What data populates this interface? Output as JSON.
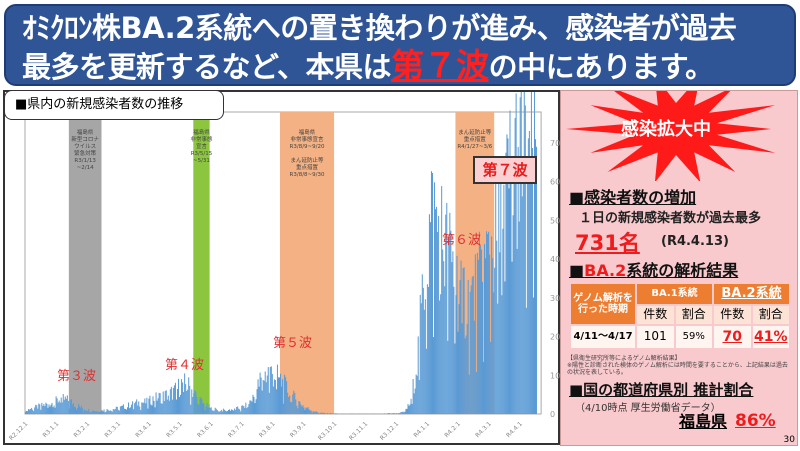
{
  "banner": {
    "line1": "ｵﾐｸﾛﾝ株BA.2系統への置き換わりが進み、感染者が過去",
    "line2_a": "最多を更新するなど、本県は",
    "line2_hl": "第７波",
    "line2_b": "の中にあります。"
  },
  "chart_title": "■県内の新規感染者数の推移",
  "wave_labels": [
    "第３波",
    "第４波",
    "第５波",
    "第６波"
  ],
  "seventh_wave_callout": "第７波",
  "shade_labels": [
    {
      "text": [
        "福島県",
        "新型コロナ",
        "ウイルス",
        "緊急対策",
        "R3/1/13",
        "~2/14"
      ],
      "color": "#a6a6a6"
    },
    {
      "text": [
        "福島県",
        "非常事態",
        "宣言",
        "R3/5/15",
        "~5/31"
      ],
      "color": "#8cc63f"
    },
    {
      "text": [
        "福島県",
        "非常事態宣言",
        "R3/8/9~9/20",
        "",
        "まん延防止等",
        "重点措置",
        "R3/8/8~9/30"
      ],
      "color": "#f4b183"
    },
    {
      "text": [
        "まん延防止等",
        "重点措置",
        "R4/1/27~3/6"
      ],
      "color": "#f4b183"
    }
  ],
  "chart_data": {
    "type": "bar",
    "title": "■県内の新規感染者数の推移",
    "x_tick_labels": [
      "R2.12.1",
      "R3.1.1",
      "R3.2.1",
      "R3.3.1",
      "R3.4.1",
      "R3.5.1",
      "R3.6.1",
      "R3.7.1",
      "R3.8.1",
      "R3.9.1",
      "R3.10.1",
      "R3.11.1",
      "R3.12.1",
      "R4.1.1",
      "R4.2.1",
      "R4.3.1",
      "R4.4.1"
    ],
    "y_ticks": [
      0,
      100,
      200,
      300,
      400,
      500,
      600,
      700
    ],
    "ylim": [
      0,
      780
    ],
    "x_start": "2020-12-01",
    "x_days": 506,
    "weekly_daily_cases": [
      10,
      15,
      20,
      25,
      30,
      40,
      35,
      25,
      15,
      10,
      8,
      10,
      12,
      15,
      20,
      25,
      30,
      30,
      40,
      45,
      50,
      60,
      80,
      70,
      45,
      25,
      15,
      10,
      10,
      12,
      15,
      22,
      45,
      90,
      110,
      100,
      80,
      55,
      35,
      20,
      10,
      4,
      2,
      2,
      1,
      1,
      1,
      1,
      1,
      1,
      1,
      2,
      2,
      5,
      30,
      160,
      380,
      520,
      470,
      420,
      370,
      310,
      290,
      310,
      360,
      420,
      460,
      520,
      620,
      690,
      650
    ],
    "max_value": {
      "value": 731,
      "date": "R4.4.13"
    },
    "shaded_periods": [
      [
        "2021-01-13",
        "2021-02-14"
      ],
      [
        "2021-05-15",
        "2021-05-31"
      ],
      [
        "2021-08-08",
        "2021-09-30"
      ],
      [
        "2022-01-27",
        "2022-03-06"
      ]
    ]
  },
  "panel": {
    "badge": "感染拡大中",
    "sec1_title": "■感染者数の増加",
    "sec1_text": "１日の新規感染者数が過去最多",
    "sec1_value": "731名",
    "sec1_date": "(R4.4.13)",
    "sec2_title_hl": "BA.2",
    "sec2_title": "系統の解析結果",
    "table": {
      "period_header": "ゲノム解析を行った時期",
      "ba1": "BA.1系統",
      "ba2": "BA.2系統",
      "count": "件数",
      "ratio": "割合",
      "period": "4/11～4/17",
      "ba1_count": "101",
      "ba1_ratio": "59%",
      "ba2_count": "70",
      "ba2_ratio": "41%"
    },
    "note1": "【県衛生研究所等によるゲノム解析結果】",
    "note2": "※陽性と診断された検体のゲノム解析には時間を要することから、上記結果は過去の状況を表している。",
    "sec3_title": "■国の都道府県別 推計割合",
    "sec3_sub": "（4/10時点 厚生労働省データ）",
    "pref": "福島県",
    "pref_value": "86%"
  },
  "page_number": "30",
  "colors": {
    "banner": "#2f5597",
    "accent": "#ee1c1c",
    "panel": "#f8c9cd",
    "bar": "#5b9bd5"
  }
}
